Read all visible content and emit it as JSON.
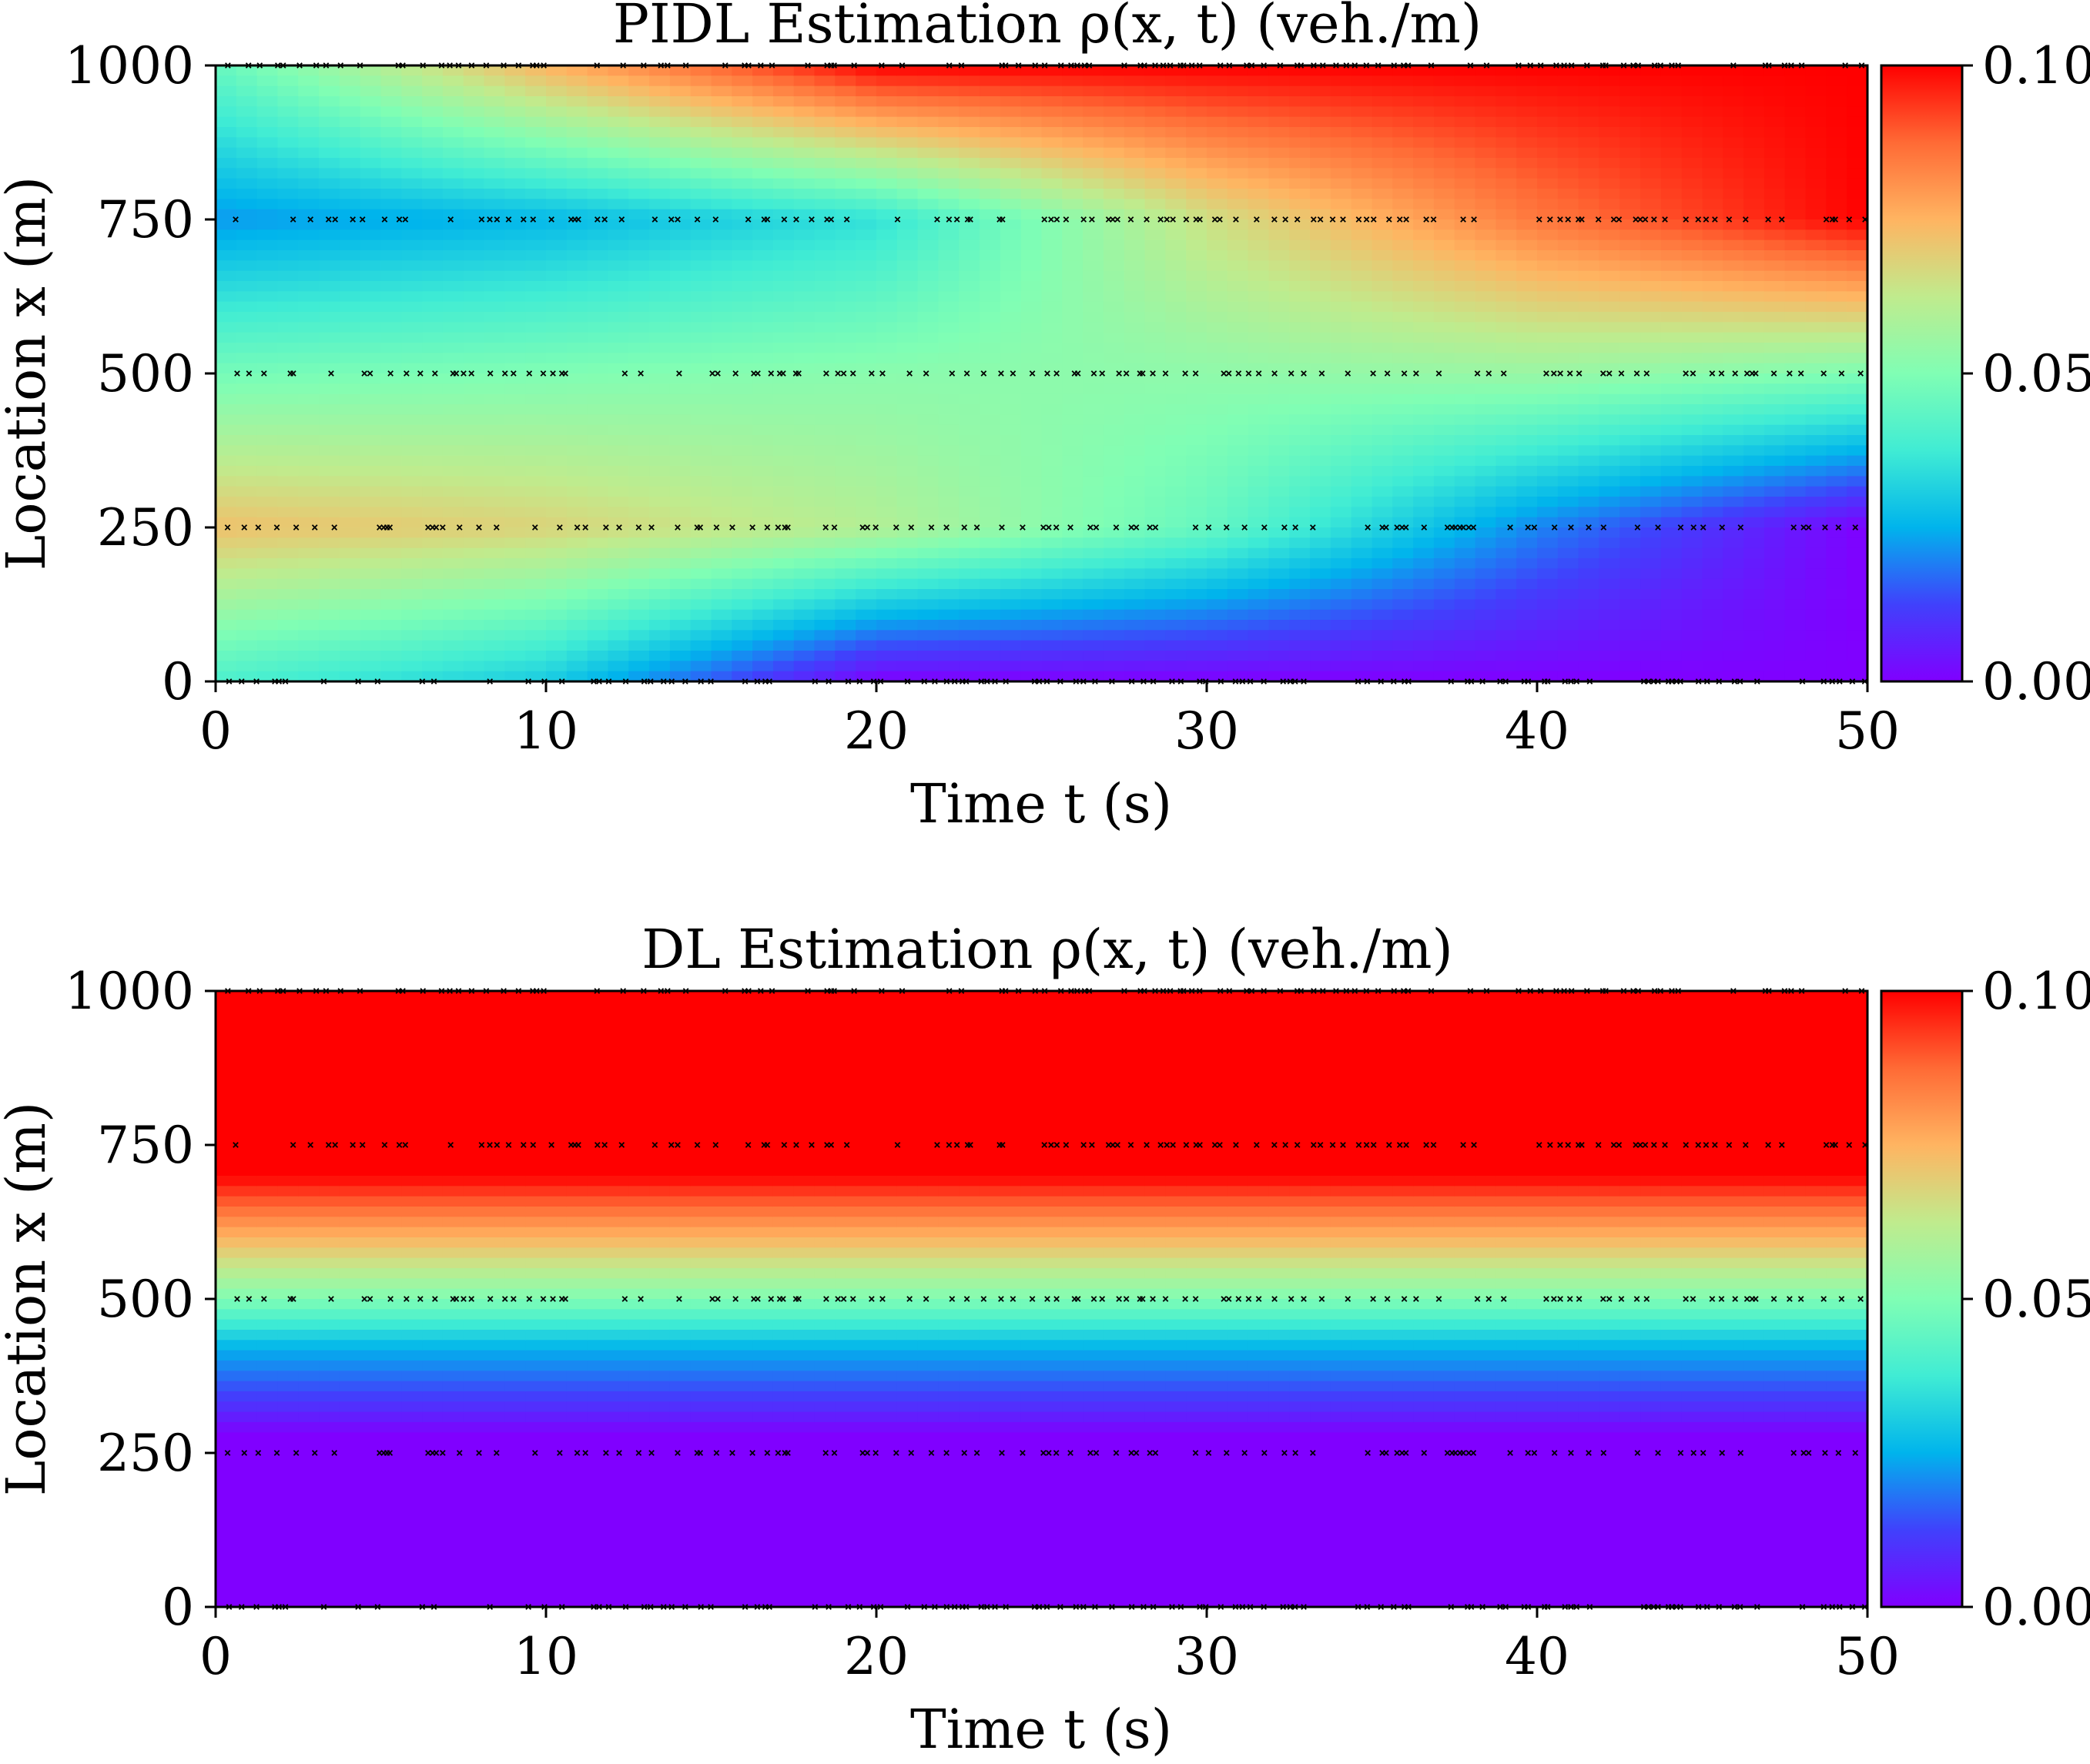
{
  "chart_data": [
    {
      "type": "heatmap",
      "id": "pidl",
      "title": "PIDL Estimation ρ(x, t) (veh./m)",
      "xlabel": "Time t (s)",
      "ylabel": "Location x (m)",
      "xlim": [
        0,
        50
      ],
      "ylim": [
        0,
        1000
      ],
      "xticks": [
        "0",
        "10",
        "20",
        "30",
        "40",
        "50"
      ],
      "yticks": [
        "0",
        "250",
        "500",
        "750",
        "1000"
      ],
      "colorbar": {
        "range": [
          0.0,
          0.1
        ],
        "ticks": [
          "0.00",
          "0.05",
          "0.10"
        ],
        "colormap": "rainbow"
      },
      "field_description": "Rarefaction-like density field: upper boundary region becomes congested (0.10) expanding down from x=1000 to ~600 by t=50; lower region becomes free-flow (0.00) expanding up from x=0 to ~400 by t=50; middle ~0.05.",
      "field_profile": {
        "times": [
          0,
          10,
          20,
          30,
          40,
          50
        ],
        "x_points": [
          0,
          250,
          500,
          750,
          1000
        ],
        "density": [
          [
            0.04,
            0.072,
            0.048,
            0.022,
            0.045
          ],
          [
            0.03,
            0.068,
            0.05,
            0.026,
            0.075
          ],
          [
            0.0,
            0.06,
            0.052,
            0.035,
            0.1
          ],
          [
            0.0,
            0.045,
            0.053,
            0.065,
            0.1
          ],
          [
            0.0,
            0.02,
            0.055,
            0.085,
            0.1
          ],
          [
            0.0,
            0.0,
            0.05,
            0.1,
            0.1
          ]
        ]
      },
      "sensor_lines_x": [
        0,
        250,
        500,
        750,
        1000
      ],
      "marker": "x",
      "marker_color": "#000000",
      "grid": false
    },
    {
      "type": "heatmap",
      "id": "dl",
      "title": "DL Estimation ρ(x, t) (veh./m)",
      "xlabel": "Time t (s)",
      "ylabel": "Location x (m)",
      "xlim": [
        0,
        50
      ],
      "ylim": [
        0,
        1000
      ],
      "xticks": [
        "0",
        "10",
        "20",
        "30",
        "40",
        "50"
      ],
      "yticks": [
        "0",
        "250",
        "500",
        "750",
        "1000"
      ],
      "colorbar": {
        "range": [
          0.0,
          0.1
        ],
        "ticks": [
          "0.00",
          "0.05",
          "0.10"
        ],
        "colormap": "rainbow"
      },
      "field_description": "Time-invariant density field: ~0.00 for x below ~280, rising through 0.05 near x=500 to 0.10 above ~700.",
      "field_profile": {
        "x_points": [
          0,
          280,
          330,
          420,
          500,
          600,
          700,
          1000
        ],
        "density": [
          0.0,
          0.0,
          0.01,
          0.025,
          0.05,
          0.075,
          0.1,
          0.1
        ]
      },
      "sensor_lines_x": [
        0,
        250,
        500,
        750,
        1000
      ],
      "marker": "x",
      "marker_color": "#000000",
      "grid": false
    }
  ]
}
